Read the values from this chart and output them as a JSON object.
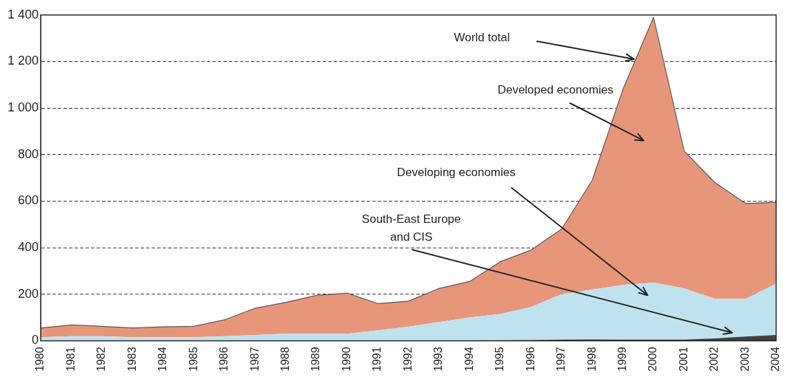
{
  "chart_data": {
    "type": "area",
    "stacked": true,
    "categories": [
      "1980",
      "1981",
      "1982",
      "1983",
      "1984",
      "1985",
      "1986",
      "1987",
      "1988",
      "1989",
      "1990",
      "1991",
      "1992",
      "1993",
      "1994",
      "1995",
      "1996",
      "1997",
      "1998",
      "1999",
      "2000",
      "2001",
      "2002",
      "2003",
      "2004"
    ],
    "series": [
      {
        "name": "South-East Europe and CIS",
        "color": "#404040",
        "values": [
          0,
          0,
          0,
          0,
          0,
          0,
          0,
          0,
          0,
          0,
          0,
          0,
          0,
          1,
          1,
          2,
          3,
          5,
          6,
          5,
          5,
          5,
          10,
          18,
          25
        ]
      },
      {
        "name": "Developing economies",
        "color": "#bfe3ee",
        "values": [
          15,
          20,
          20,
          15,
          15,
          15,
          20,
          25,
          30,
          30,
          30,
          45,
          60,
          79,
          99,
          113,
          142,
          195,
          214,
          235,
          245,
          220,
          170,
          162,
          220
        ]
      },
      {
        "name": "Developed economies",
        "color": "#e8967a",
        "values": [
          40,
          48,
          42,
          40,
          45,
          47,
          70,
          115,
          135,
          165,
          175,
          115,
          110,
          145,
          155,
          225,
          245,
          280,
          470,
          840,
          1140,
          590,
          500,
          410,
          350
        ]
      }
    ],
    "ylim": [
      0,
      1400
    ],
    "yticks": [
      0,
      {
        "value": 200,
        "label": "200"
      },
      {
        "value": 400,
        "label": "400"
      },
      {
        "value": 600,
        "label": "600"
      },
      {
        "value": 800,
        "label": "800"
      },
      {
        "value": 1000,
        "label": "1 000"
      },
      {
        "value": 1200,
        "label": "1 200"
      },
      {
        "value": 1400,
        "label": "1 400"
      }
    ],
    "grid": "y",
    "legend": false,
    "line_style": "dashed",
    "annotations": [
      "World total"
    ]
  }
}
